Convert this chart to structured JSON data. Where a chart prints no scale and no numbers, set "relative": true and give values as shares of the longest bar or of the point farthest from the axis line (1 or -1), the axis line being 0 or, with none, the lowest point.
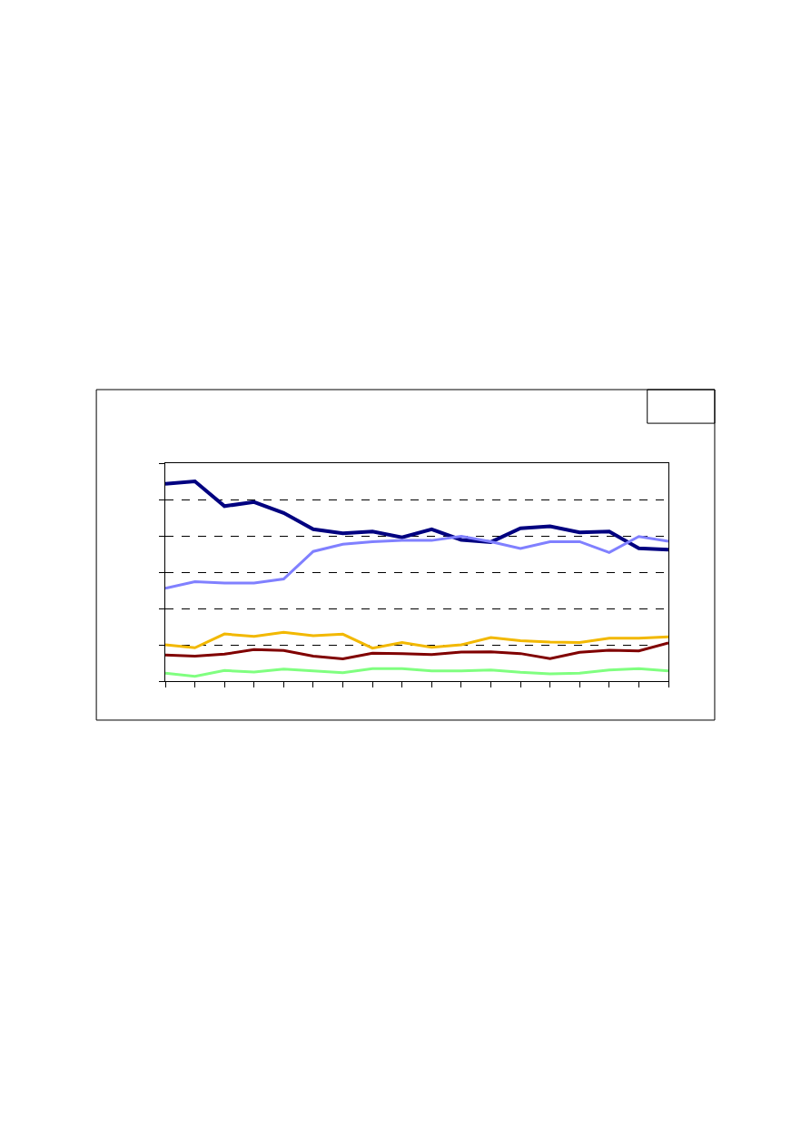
{
  "chart_data": {
    "type": "line",
    "relative": true,
    "grid": "y",
    "categories": [
      null,
      null,
      null,
      null,
      null,
      null,
      null,
      null,
      null,
      null,
      null,
      null,
      null,
      null,
      null,
      null,
      null,
      null
    ],
    "series": [
      {
        "color": "#000080",
        "values": [
          0.987,
          1,
          0.876,
          0.896,
          0.842,
          0.76,
          0.74,
          0.749,
          0.72,
          0.76,
          0.707,
          0.696,
          0.765,
          0.775,
          0.744,
          0.749,
          0.665,
          0.658
        ]
      },
      {
        "color": "#8080ff",
        "values": [
          0.465,
          0.498,
          0.491,
          0.491,
          0.511,
          0.649,
          0.685,
          0.698,
          0.704,
          0.704,
          0.725,
          0.698,
          0.664,
          0.698,
          0.698,
          0.644,
          0.724,
          0.7
        ]
      },
      {
        "color": "#f2b800",
        "values": [
          0.182,
          0.167,
          0.236,
          0.224,
          0.244,
          0.227,
          0.235,
          0.165,
          0.193,
          0.169,
          0.182,
          0.218,
          0.202,
          0.195,
          0.193,
          0.215,
          0.215,
          0.222
        ]
      },
      {
        "color": "#800000",
        "values": [
          0.131,
          0.125,
          0.135,
          0.158,
          0.153,
          0.125,
          0.111,
          0.14,
          0.138,
          0.133,
          0.145,
          0.147,
          0.138,
          0.113,
          0.144,
          0.155,
          0.151,
          0.191
        ]
      },
      {
        "color": "#80ff80",
        "values": [
          0.04,
          0.024,
          0.053,
          0.045,
          0.06,
          0.051,
          0.042,
          0.062,
          0.062,
          0.051,
          0.051,
          0.056,
          0.044,
          0.036,
          0.04,
          0.056,
          0.062,
          0.051
        ]
      }
    ]
  }
}
